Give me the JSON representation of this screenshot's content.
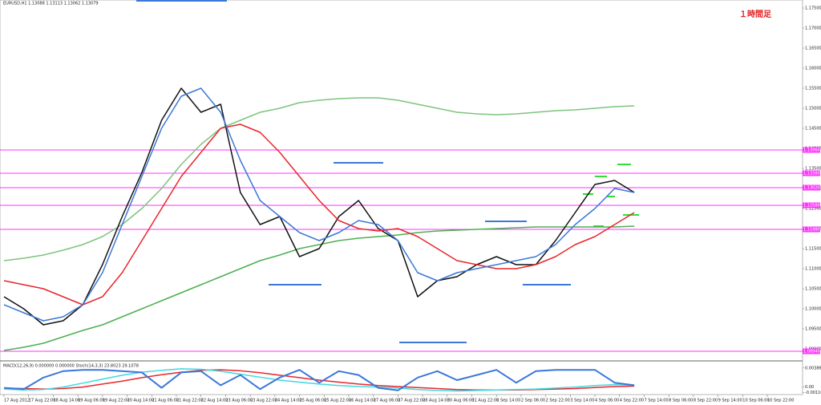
{
  "chart_data": [
    {
      "type": "line",
      "title": "EURUSD,H1 1.13088 1.13113 1.13062 1.13079",
      "annotation": "１時間足",
      "x": [
        0,
        1,
        2,
        3,
        4,
        5,
        6,
        7,
        8,
        9,
        10,
        11,
        12,
        13,
        14,
        15,
        16,
        17,
        18,
        19,
        20,
        21,
        22,
        23,
        24,
        25,
        26,
        27,
        28,
        29,
        30,
        31,
        32
      ],
      "xlim": [
        0,
        40.5
      ],
      "xticks": [
        {
          "value": 0,
          "label": "17 Aug 2012"
        },
        {
          "value": 1.25,
          "label": "17 Aug 22:00"
        },
        {
          "value": 2.5,
          "label": "18 Aug 14:00"
        },
        {
          "value": 3.75,
          "label": "19 Aug 06:00"
        },
        {
          "value": 5,
          "label": "19 Aug 22:00"
        },
        {
          "value": 6.25,
          "label": "20 Aug 14:00"
        },
        {
          "value": 7.5,
          "label": "21 Aug 06:00"
        },
        {
          "value": 8.75,
          "label": "21 Aug 22:00"
        },
        {
          "value": 10,
          "label": "22 Aug 14:00"
        },
        {
          "value": 11.25,
          "label": "23 Aug 06:00"
        },
        {
          "value": 12.5,
          "label": "23 Aug 22:00"
        },
        {
          "value": 13.75,
          "label": "24 Aug 14:00"
        },
        {
          "value": 15,
          "label": "25 Aug 06:00"
        },
        {
          "value": 16.25,
          "label": "25 Aug 22:00"
        },
        {
          "value": 17.5,
          "label": "26 Aug 14:00"
        },
        {
          "value": 18.75,
          "label": "27 Aug 06:00"
        },
        {
          "value": 20,
          "label": "27 Aug 22:00"
        },
        {
          "value": 21.25,
          "label": "28 Aug 14:00"
        },
        {
          "value": 22.5,
          "label": "30 Aug 06:00"
        },
        {
          "value": 23.75,
          "label": "31 Aug 22:00"
        },
        {
          "value": 25,
          "label": "1 Sep 14:00"
        },
        {
          "value": 26.25,
          "label": "2 Sep 06:00"
        },
        {
          "value": 27.5,
          "label": "2 Sep 22:00"
        },
        {
          "value": 28.75,
          "label": "3 Sep 14:00"
        },
        {
          "value": 30,
          "label": "4 Sep 06:00"
        },
        {
          "value": 31.25,
          "label": "4 Sep 22:00"
        },
        {
          "value": 32.5,
          "label": "7 Sep 14:00"
        },
        {
          "value": 33.75,
          "label": "8 Sep 06:00"
        },
        {
          "value": 35,
          "label": "8 Sep 22:00"
        },
        {
          "value": 36.25,
          "label": "9 Sep 14:00"
        },
        {
          "value": 37.5,
          "label": "10 Sep 06:00"
        },
        {
          "value": 38.75,
          "label": "10 Sep 22:00"
        }
      ],
      "ylim": [
        1.087,
        1.177
      ],
      "yticks": [
        {
          "value": 1.09,
          "label": "1.09000"
        },
        {
          "value": 1.095,
          "label": "1.09500"
        },
        {
          "value": 1.1,
          "label": "1.10000"
        },
        {
          "value": 1.105,
          "label": "1.10500"
        },
        {
          "value": 1.11,
          "label": "1.11000"
        },
        {
          "value": 1.115,
          "label": "1.11500"
        },
        {
          "value": 1.12,
          "label": "1.12000"
        },
        {
          "value": 1.125,
          "label": "1.12500"
        },
        {
          "value": 1.13,
          "label": "1.13000"
        },
        {
          "value": 1.135,
          "label": "1.13500"
        },
        {
          "value": 1.14,
          "label": "1.14000"
        },
        {
          "value": 1.145,
          "label": "1.14500"
        },
        {
          "value": 1.15,
          "label": "1.15000"
        },
        {
          "value": 1.155,
          "label": "1.15500"
        },
        {
          "value": 1.16,
          "label": "1.16000"
        },
        {
          "value": 1.165,
          "label": "1.16500"
        },
        {
          "value": 1.17,
          "label": "1.17000"
        },
        {
          "value": 1.175,
          "label": "1.17500"
        }
      ],
      "series": [
        {
          "color": "#7dc47d",
          "values": [
            1.112,
            1.1126,
            1.1134,
            1.1146,
            1.116,
            1.118,
            1.121,
            1.125,
            1.13,
            1.136,
            1.141,
            1.145,
            1.147,
            1.149,
            1.15,
            1.1514,
            1.152,
            1.1524,
            1.1526,
            1.1526,
            1.152,
            1.151,
            1.15,
            1.149,
            1.1486,
            1.1484,
            1.1486,
            1.149,
            1.1494,
            1.1496,
            1.15,
            1.1504,
            1.1506
          ]
        },
        {
          "color": "#4caf50",
          "values": [
            1.0896,
            1.0904,
            1.0914,
            1.093,
            1.0946,
            1.096,
            1.098,
            1.1,
            1.102,
            1.104,
            1.106,
            1.108,
            1.11,
            1.112,
            1.1134,
            1.115,
            1.116,
            1.117,
            1.1176,
            1.118,
            1.1184,
            1.119,
            1.1194,
            1.1196,
            1.1198,
            1.12,
            1.1202,
            1.1204,
            1.1204,
            1.1204,
            1.1204,
            1.1204,
            1.1206
          ]
        },
        {
          "color": "#111111",
          "values": [
            1.103,
            1.1,
            1.096,
            1.097,
            1.101,
            1.111,
            1.123,
            1.134,
            1.147,
            1.155,
            1.149,
            1.151,
            1.129,
            1.121,
            1.123,
            1.113,
            1.115,
            1.123,
            1.127,
            1.12,
            1.117,
            1.103,
            1.107,
            1.108,
            1.111,
            1.113,
            1.111,
            1.111,
            1.117,
            1.124,
            1.131,
            1.132,
            1.129
          ]
        },
        {
          "color": "#e8262b",
          "values": [
            1.107,
            1.106,
            1.105,
            1.103,
            1.101,
            1.103,
            1.109,
            1.117,
            1.125,
            1.133,
            1.139,
            1.145,
            1.146,
            1.144,
            1.139,
            1.133,
            1.127,
            1.122,
            1.12,
            1.1194,
            1.12,
            1.118,
            1.115,
            1.112,
            1.111,
            1.11,
            1.11,
            1.111,
            1.113,
            1.116,
            1.118,
            1.121,
            1.124
          ]
        },
        {
          "color": "#3b78d8",
          "values": [
            1.101,
            1.099,
            1.097,
            1.098,
            1.101,
            1.109,
            1.121,
            1.133,
            1.145,
            1.153,
            1.155,
            1.149,
            1.137,
            1.127,
            1.123,
            1.119,
            1.117,
            1.119,
            1.122,
            1.121,
            1.117,
            1.109,
            1.107,
            1.109,
            1.11,
            1.111,
            1.112,
            1.113,
            1.116,
            1.121,
            1.125,
            1.13,
            1.129
          ]
        }
      ],
      "levels": [
        1.1396,
        1.1338,
        1.1302,
        1.1258,
        1.1198,
        1.0894
      ],
      "level_labels": [
        "1.13960",
        "1.13380",
        "1.13020",
        "1.12580",
        "1.11980",
        "1.08940"
      ],
      "level_color": "#ff33ff"
    },
    {
      "type": "line",
      "title": "MACD(12,26,9) 0.000000 0.000000  Stoch(14,3,3) 23.8023 29.1078",
      "x": [
        0,
        1,
        2,
        3,
        4,
        5,
        6,
        7,
        8,
        9,
        10,
        11,
        12,
        13,
        14,
        15,
        16,
        17,
        18,
        19,
        20,
        21,
        22,
        23,
        24,
        25,
        26,
        27,
        28,
        29,
        30,
        31,
        32
      ],
      "xlim": [
        0,
        40.5
      ],
      "ylim": [
        -0.0012,
        0.004
      ],
      "yticks": [
        {
          "value": 0.003865,
          "label": "0.003865"
        },
        {
          "value": 0,
          "label": "0.00"
        },
        {
          "value": -0.001105,
          "label": "-0.001105"
        }
      ],
      "y2lim": [
        0,
        100
      ],
      "series": [
        {
          "color": "#e8262b",
          "values": [
            -0.0002,
            -0.0003,
            -0.0004,
            -0.0003,
            0,
            0.0006,
            0.0012,
            0.0019,
            0.0025,
            0.003,
            0.0034,
            0.0035,
            0.0033,
            0.0029,
            0.0024,
            0.0019,
            0.0014,
            0.001,
            0.0006,
            0.0003,
            0.0001,
            -0.0001,
            -0.0003,
            -0.0005,
            -0.0006,
            -0.0006,
            -0.0006,
            -0.0005,
            -0.0004,
            -0.0003,
            -0.0001,
            0.0001,
            0.0002
          ]
        },
        {
          "color": "#40d8e0",
          "values": [
            -0.0004,
            -0.0006,
            -0.0005,
            0,
            0.0008,
            0.0016,
            0.0024,
            0.003,
            0.0034,
            0.0037,
            0.0036,
            0.0032,
            0.0026,
            0.002,
            0.0014,
            0.001,
            0.0006,
            0.0003,
            0.0001,
            0,
            -0.0002,
            -0.0005,
            -0.0007,
            -0.0008,
            -0.0007,
            -0.0006,
            -0.0005,
            -0.0004,
            -0.0002,
            0,
            0.0003,
            0.0005,
            0.0004
          ]
        },
        {
          "color": "#3b78d8",
          "axis": "y2",
          "values": [
            20,
            15,
            60,
            85,
            90,
            90,
            85,
            80,
            20,
            80,
            85,
            30,
            70,
            15,
            60,
            90,
            40,
            85,
            70,
            20,
            10,
            60,
            85,
            50,
            70,
            90,
            40,
            85,
            90,
            90,
            90,
            40,
            30
          ]
        }
      ]
    }
  ]
}
